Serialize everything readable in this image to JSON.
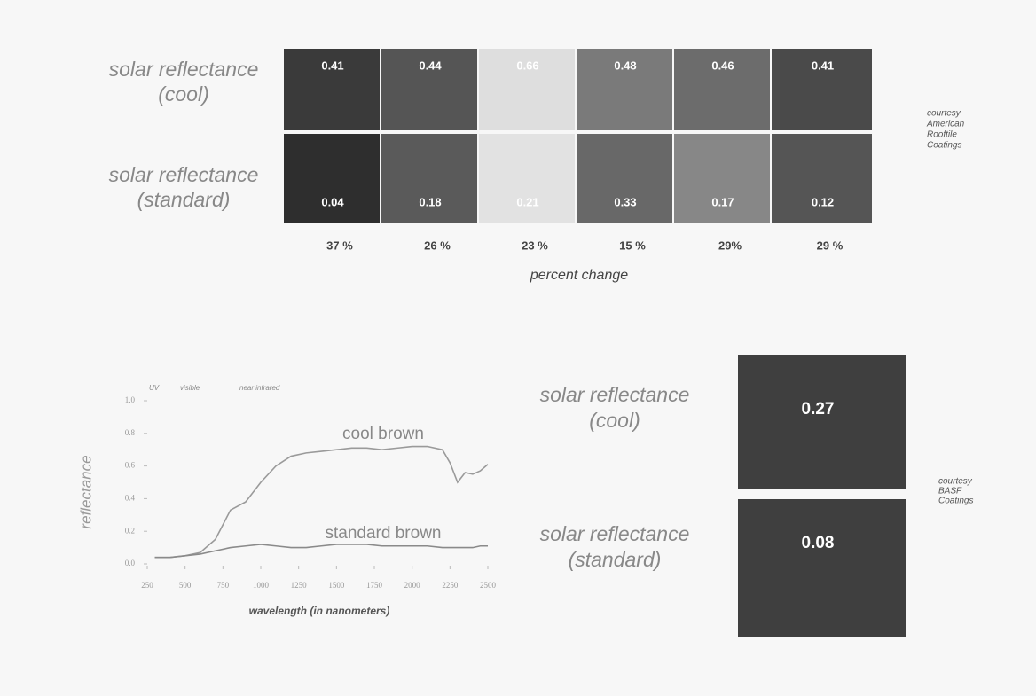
{
  "tile_panel": {
    "rows": [
      {
        "label": [
          "solar reflectance",
          "(cool)"
        ],
        "values": [
          0.41,
          0.44,
          0.66,
          0.48,
          0.46,
          0.41
        ],
        "colors": [
          "#3a3a3a",
          "#555555",
          "#dedede",
          "#7a7a7a",
          "#6c6c6c",
          "#4a4a4a"
        ]
      },
      {
        "label": [
          "solar reflectance",
          "(standard)"
        ],
        "values": [
          0.04,
          0.18,
          0.21,
          0.33,
          0.17,
          0.12
        ],
        "colors": [
          "#2e2e2e",
          "#5a5a5a",
          "#e2e2e2",
          "#686868",
          "#878787",
          "#555555"
        ]
      }
    ],
    "percent_changes": [
      "37 %",
      "26 %",
      "23 %",
      "15 %",
      "29%",
      "29 %"
    ],
    "percent_label": "percent change",
    "courtesy": [
      "courtesy",
      "American",
      "Rooftile",
      "Coatings"
    ]
  },
  "chart_data": {
    "type": "line",
    "xlabel": "wavelength (in nanometers)",
    "ylabel": "reflectance",
    "regions": [
      "UV",
      "visible",
      "near infrared"
    ],
    "x": [
      300,
      400,
      500,
      600,
      700,
      800,
      900,
      1000,
      1100,
      1200,
      1300,
      1400,
      1500,
      1600,
      1700,
      1800,
      1900,
      2000,
      2100,
      2200,
      2250,
      2300,
      2350,
      2400,
      2450,
      2500
    ],
    "series": [
      {
        "name": "cool brown",
        "color": "#9a9a9a",
        "values": [
          0.04,
          0.04,
          0.05,
          0.07,
          0.15,
          0.33,
          0.38,
          0.5,
          0.6,
          0.66,
          0.68,
          0.69,
          0.7,
          0.71,
          0.71,
          0.7,
          0.71,
          0.72,
          0.72,
          0.7,
          0.62,
          0.5,
          0.56,
          0.55,
          0.57,
          0.61
        ]
      },
      {
        "name": "standard brown",
        "color": "#8a8a8a",
        "values": [
          0.04,
          0.04,
          0.05,
          0.06,
          0.08,
          0.1,
          0.11,
          0.12,
          0.11,
          0.1,
          0.1,
          0.11,
          0.12,
          0.12,
          0.12,
          0.11,
          0.11,
          0.11,
          0.11,
          0.1,
          0.1,
          0.1,
          0.1,
          0.1,
          0.11,
          0.11
        ]
      }
    ],
    "xlim": [
      250,
      2500
    ],
    "xticks": [
      250,
      500,
      750,
      1000,
      1250,
      1500,
      1750,
      2000,
      2250,
      2500
    ],
    "ylim": [
      0,
      1
    ],
    "yticks": [
      {
        "value": 0,
        "label": "0.0"
      },
      0.2,
      0.4,
      0.6,
      0.8,
      {
        "value": 1,
        "label": "1.0"
      }
    ]
  },
  "basf_panel": {
    "rows": [
      {
        "label": [
          "solar reflectance",
          "(cool)"
        ],
        "value": 0.27
      },
      {
        "label": [
          "solar reflectance",
          "(standard)"
        ],
        "value": 0.08
      }
    ],
    "color": "#3f3f3f",
    "courtesy": [
      "courtesy",
      "BASF",
      "Coatings"
    ]
  }
}
